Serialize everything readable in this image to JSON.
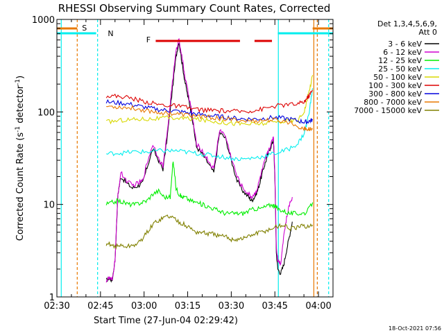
{
  "chart_data": {
    "type": "line",
    "title": "RHESSI Observing Summary Count Rates, Corrected",
    "xlabel": "Start Time (27-Jun-04 02:29:42)",
    "ylabel_main": "Corrected Count Rate (s",
    "ylabel_sup1": "-1",
    "ylabel_mid": " detector",
    "ylabel_sup2": "-1",
    "ylabel_end": ")",
    "yscale": "log",
    "xlim_minutes": [
      0,
      95
    ],
    "ylim": [
      1,
      1000
    ],
    "x_ticks": [
      {
        "label": "02:30",
        "minute": 0
      },
      {
        "label": "02:45",
        "minute": 15
      },
      {
        "label": "03:00",
        "minute": 30
      },
      {
        "label": "03:15",
        "minute": 45
      },
      {
        "label": "03:30",
        "minute": 60
      },
      {
        "label": "03:45",
        "minute": 75
      },
      {
        "label": "04:00",
        "minute": 90
      }
    ],
    "y_ticks": [
      {
        "label": "1",
        "value": 1
      },
      {
        "label": "10",
        "value": 10
      },
      {
        "label": "100",
        "value": 100
      },
      {
        "label": "1000",
        "value": 1000
      }
    ],
    "legend_header": [
      "Det 1,3,4,5,6,9,",
      "Att 0"
    ],
    "legend_position": "outside-right",
    "series": [
      {
        "name": "3 - 6 keV",
        "color": "#000000",
        "x": [
          17,
          18,
          19,
          20,
          21,
          22,
          24,
          26,
          28,
          29.5,
          31,
          33,
          35,
          36.5,
          38,
          39.5,
          41,
          42,
          43,
          44,
          45,
          46,
          47,
          48,
          50,
          52,
          54,
          56,
          58,
          60,
          62,
          64,
          66,
          67,
          68,
          69,
          70,
          71,
          72,
          73,
          74,
          74.5,
          75,
          75.5,
          76,
          77,
          78,
          79,
          80,
          81
        ],
        "y": [
          1.5,
          1.6,
          1.5,
          2.5,
          13,
          20,
          17,
          15,
          16,
          17,
          25,
          40,
          30,
          24,
          55,
          150,
          400,
          580,
          350,
          220,
          150,
          110,
          70,
          42,
          35,
          28,
          22,
          60,
          52,
          30,
          18,
          14,
          12,
          11,
          12,
          14,
          18,
          24,
          30,
          38,
          45,
          50,
          20,
          3,
          2,
          1.8,
          2.2,
          3.2,
          4.5,
          6.5
        ]
      },
      {
        "name": "6 - 12 keV",
        "color": "#d000d0",
        "x": [
          17,
          18,
          19,
          20,
          21,
          22,
          24,
          26,
          28,
          29.5,
          31,
          33,
          35,
          36.5,
          38,
          39.5,
          41,
          42,
          43,
          44,
          45,
          46,
          47,
          48,
          50,
          52,
          54,
          56,
          58,
          60,
          62,
          64,
          66,
          67,
          68,
          69,
          70,
          71,
          72,
          73,
          74,
          74.5,
          75,
          75.5,
          76,
          77,
          78,
          79,
          80,
          81
        ],
        "y": [
          1.5,
          1.6,
          1.5,
          2.5,
          13,
          22,
          18,
          16,
          17,
          18,
          28,
          45,
          32,
          26,
          60,
          180,
          450,
          620,
          400,
          250,
          170,
          120,
          75,
          45,
          38,
          30,
          24,
          65,
          55,
          32,
          20,
          15,
          13,
          12,
          13,
          15,
          20,
          26,
          32,
          40,
          48,
          55,
          22,
          3.5,
          2.5,
          2.3,
          4.5,
          7,
          10,
          12
        ]
      },
      {
        "name": "12 - 25 keV",
        "color": "#00ee00",
        "x": [
          17,
          19,
          21,
          23,
          25,
          27,
          29,
          31,
          33,
          35,
          37,
          39,
          40,
          41,
          42,
          43,
          44,
          46,
          48,
          50,
          52,
          54,
          56,
          58,
          60,
          62,
          64,
          66,
          68,
          70,
          72,
          74,
          75,
          76,
          78,
          80,
          82,
          84,
          86,
          88
        ],
        "y": [
          10,
          10.5,
          11,
          10.5,
          10,
          10,
          10.5,
          11,
          13,
          14,
          12,
          12,
          30,
          15,
          13,
          12,
          12,
          11,
          10.5,
          10,
          9.5,
          9,
          8.5,
          8,
          8,
          8,
          8,
          8.5,
          9,
          9,
          9.5,
          10,
          9.5,
          9,
          8.5,
          8,
          8,
          8,
          8.2,
          10.5
        ]
      },
      {
        "name": "25 - 50 keV",
        "color": "#00eeee",
        "x": [
          17,
          20,
          23,
          26,
          29,
          32,
          35,
          38,
          41,
          44,
          47,
          50,
          53,
          56,
          59,
          62,
          65,
          68,
          71,
          74,
          77,
          80,
          83,
          85,
          86,
          87,
          88
        ],
        "y": [
          35,
          36,
          36,
          37,
          37,
          37,
          38,
          38,
          38,
          37,
          36,
          35,
          34,
          33,
          32,
          31,
          31,
          32,
          33,
          35,
          37,
          40,
          46,
          58,
          75,
          110,
          180
        ]
      },
      {
        "name": "50 - 100 keV",
        "color": "#d8d800",
        "x": [
          17,
          20,
          23,
          26,
          29,
          32,
          35,
          38,
          41,
          44,
          47,
          50,
          53,
          56,
          59,
          62,
          65,
          68,
          71,
          74,
          77,
          80,
          83,
          85,
          86,
          87,
          88
        ],
        "y": [
          78,
          80,
          82,
          83,
          84,
          84,
          85,
          86,
          86,
          85,
          84,
          82,
          80,
          78,
          76,
          75,
          74,
          74,
          75,
          77,
          79,
          80,
          82,
          100,
          130,
          180,
          250
        ]
      },
      {
        "name": "100 - 300 keV",
        "color": "#dd0000",
        "x": [
          17,
          20,
          23,
          26,
          29,
          32,
          35,
          38,
          41,
          44,
          47,
          50,
          53,
          56,
          59,
          62,
          65,
          68,
          71,
          74,
          77,
          80,
          83,
          85,
          86,
          87,
          88
        ],
        "y": [
          150,
          148,
          146,
          140,
          132,
          126,
          120,
          118,
          116,
          112,
          108,
          105,
          104,
          103,
          102,
          101,
          102,
          104,
          108,
          114,
          118,
          120,
          122,
          128,
          140,
          155,
          170
        ]
      },
      {
        "name": "300 - 800 keV",
        "color": "#0000dd",
        "x": [
          17,
          20,
          23,
          26,
          29,
          32,
          35,
          38,
          41,
          44,
          47,
          50,
          53,
          56,
          59,
          62,
          65,
          68,
          71,
          74,
          77,
          80,
          83,
          85,
          86,
          87,
          88
        ],
        "y": [
          128,
          126,
          124,
          120,
          114,
          110,
          106,
          104,
          102,
          99,
          96,
          93,
          91,
          89,
          87,
          85,
          84,
          84,
          85,
          87,
          86,
          84,
          80,
          78,
          78,
          80,
          82
        ]
      },
      {
        "name": "800 - 7000 keV",
        "color": "#e87800",
        "x": [
          17,
          20,
          23,
          26,
          29,
          32,
          35,
          38,
          41,
          44,
          47,
          50,
          53,
          56,
          59,
          62,
          65,
          68,
          71,
          74,
          77,
          80,
          83,
          85,
          86,
          87,
          88
        ],
        "y": [
          115,
          114,
          112,
          110,
          106,
          102,
          99,
          97,
          95,
          93,
          91,
          89,
          87,
          85,
          83,
          81,
          80,
          80,
          81,
          82,
          80,
          77,
          70,
          66,
          65,
          65,
          65
        ]
      },
      {
        "name": "7000 - 15000 keV",
        "color": "#808000",
        "x": [
          17,
          18,
          20,
          22,
          24,
          26,
          28,
          30,
          32,
          34,
          36,
          38,
          40,
          42,
          44,
          46,
          48,
          50,
          52,
          54,
          56,
          58,
          60,
          62,
          64,
          66,
          68,
          70,
          72,
          74,
          76,
          78,
          80,
          82,
          84,
          86,
          88
        ],
        "y": [
          3.5,
          3.8,
          3.5,
          3.6,
          3.5,
          3.6,
          3.8,
          4.5,
          5.5,
          6.5,
          7,
          7.5,
          7.2,
          6.5,
          6,
          5.5,
          5,
          5,
          4.8,
          4.8,
          4.5,
          4.5,
          4.2,
          4.2,
          4.3,
          4.5,
          4.8,
          5,
          5.2,
          5.5,
          5.8,
          6,
          5.5,
          5.5,
          5.8,
          5.8,
          6
        ]
      }
    ],
    "flag_bars": [
      {
        "label": "S",
        "color": "#e87800",
        "segments": [
          [
            0,
            7
          ],
          [
            88,
            95
          ]
        ]
      },
      {
        "label": "N",
        "color": "#00eeee",
        "segments": [
          [
            0,
            13.5
          ],
          [
            76,
            95
          ]
        ]
      },
      {
        "label": "F",
        "color": "#dd0000",
        "segments": [
          [
            34,
            63
          ],
          [
            68,
            74
          ]
        ]
      }
    ],
    "vertical_markers": [
      {
        "minute": 7,
        "color": "#e87800",
        "style": "dashed"
      },
      {
        "minute": 14,
        "color": "#00eeee",
        "style": "dashed"
      },
      {
        "minute": 1.5,
        "color": "#00eeee",
        "style": "solid"
      },
      {
        "minute": 76.2,
        "color": "#00eeee",
        "style": "solid"
      },
      {
        "minute": 88.4,
        "color": "#e87800",
        "style": "solid"
      },
      {
        "minute": 89.6,
        "color": "#e87800",
        "style": "dashed"
      },
      {
        "minute": 93.5,
        "color": "#00eeee",
        "style": "dashed"
      }
    ]
  },
  "timestamp": "18-Oct-2021 07:56"
}
